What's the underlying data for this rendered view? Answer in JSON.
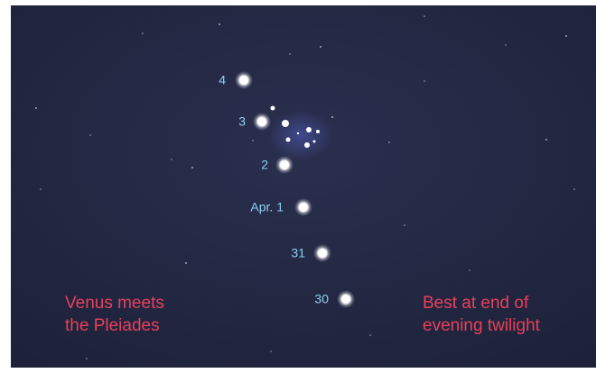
{
  "venus_positions": [
    {
      "label": "4"
    },
    {
      "label": "3"
    },
    {
      "label": "2"
    },
    {
      "label": "Apr. 1"
    },
    {
      "label": "31"
    },
    {
      "label": "30"
    }
  ],
  "captions": {
    "left": [
      "Venus meets",
      "the Pleiades"
    ],
    "right": [
      "Best at end of",
      "evening twilight"
    ]
  }
}
